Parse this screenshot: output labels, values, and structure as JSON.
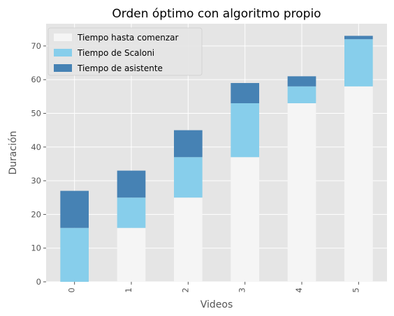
{
  "chart_data": {
    "type": "bar",
    "stacked": true,
    "title": "Orden óptimo con algoritmo propio",
    "xlabel": "Videos",
    "ylabel": "Duración",
    "categories": [
      "0",
      "1",
      "2",
      "3",
      "4",
      "5"
    ],
    "ylim": [
      0,
      76.6
    ],
    "yticks": [
      0,
      10,
      20,
      30,
      40,
      50,
      60,
      70
    ],
    "grid": true,
    "legend_position": "top-left",
    "style": "ggplot",
    "series": [
      {
        "name": "Tiempo hasta comenzar",
        "color": "#f5f5f5",
        "values": [
          0,
          16,
          25,
          37,
          53,
          58
        ]
      },
      {
        "name": "Tiempo de Scaloni",
        "color": "#87ceeb",
        "values": [
          16,
          9,
          12,
          16,
          5,
          14
        ]
      },
      {
        "name": "Tiempo de asistente",
        "color": "#4682b4",
        "values": [
          11,
          8,
          8,
          6,
          3,
          1
        ]
      }
    ]
  }
}
